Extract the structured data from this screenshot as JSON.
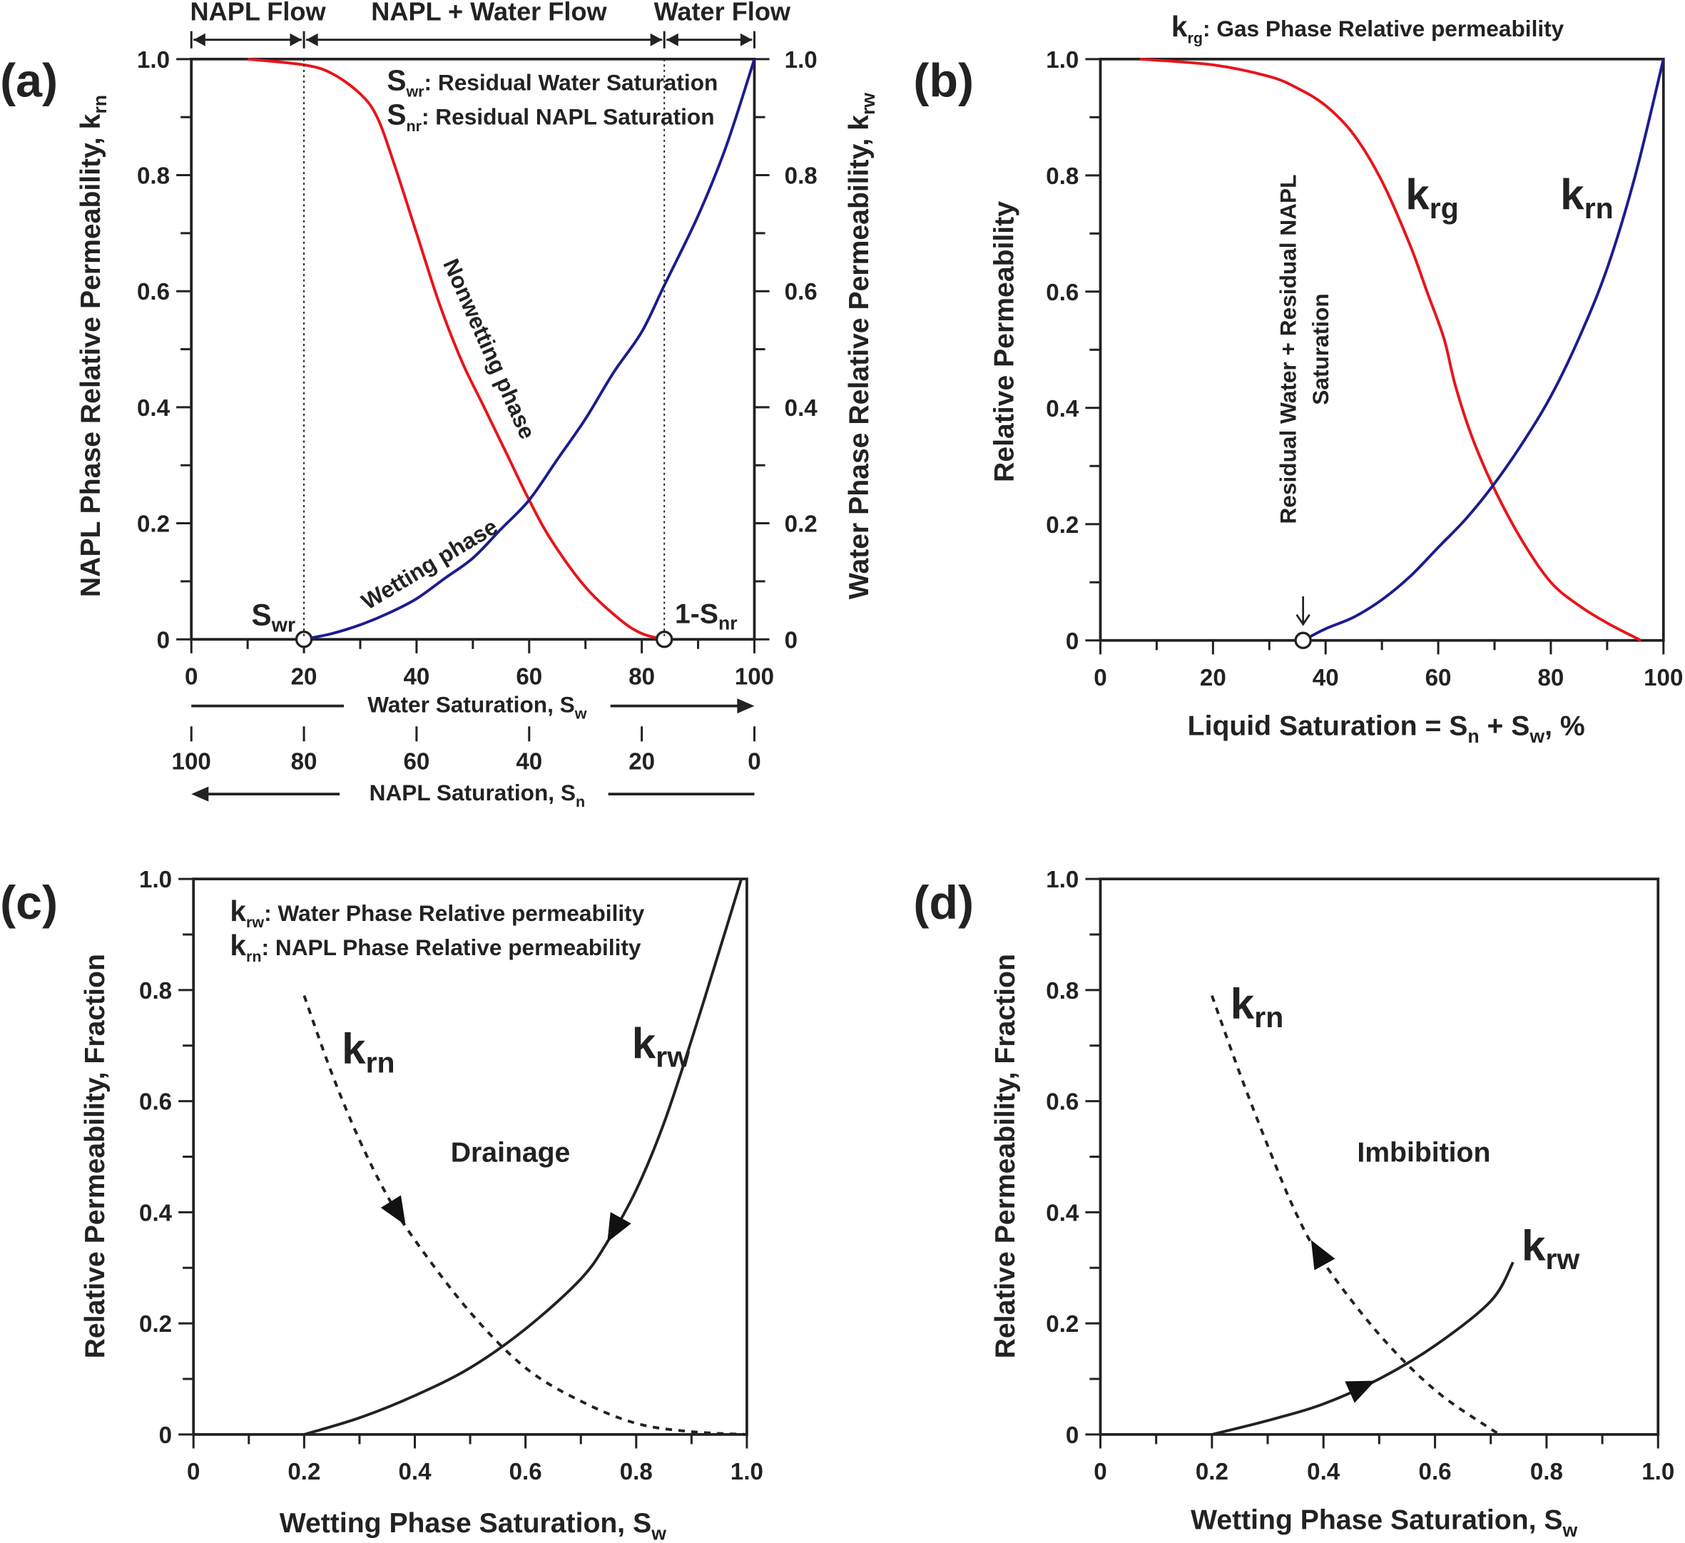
{
  "chart_data": [
    {
      "panel": "(a)",
      "type": "line",
      "xlim": [
        0,
        100
      ],
      "ylim": [
        0,
        1
      ],
      "x_ticks": [
        "0",
        "20",
        "40",
        "60",
        "80",
        "100"
      ],
      "y_ticks": [
        "0",
        "0.2",
        "0.4",
        "0.6",
        "0.8",
        "1.0"
      ],
      "y2_ticks": [
        "0",
        "0.2",
        "0.4",
        "0.6",
        "0.8",
        "1.0"
      ],
      "secondary_x_ticks": [
        "100",
        "80",
        "60",
        "40",
        "20",
        "0"
      ],
      "xlabel": {
        "text": "Water Saturation, S",
        "sub": "w"
      },
      "secondary_xlabel": {
        "text": "NAPL Saturation, S",
        "sub": "n"
      },
      "ylabel": {
        "text": "NAPL Phase Relative Permeability, k",
        "sub": "rn"
      },
      "y2label": {
        "text": "Water Phase Relative Permeability, k",
        "sub": "rw"
      },
      "flow_regions": [
        "NAPL Flow",
        "NAPL + Water Flow",
        "Water Flow"
      ],
      "legend": [
        {
          "symbol": "S",
          "sub": "wr",
          "text": ": Residual Water Saturation"
        },
        {
          "symbol": "S",
          "sub": "nr",
          "text": ": Residual NAPL Saturation"
        }
      ],
      "markers": [
        {
          "label": "S",
          "sub": "wr",
          "x": 20,
          "y": 0
        },
        {
          "label": "1-S",
          "sub": "nr",
          "x": 84,
          "y": 0
        }
      ],
      "series": [
        {
          "name": "Nonwetting phase",
          "color": "#e8141b",
          "style": "solid",
          "x": [
            10,
            20,
            25,
            30,
            33,
            36,
            40,
            44,
            48,
            52,
            56,
            60,
            64,
            70,
            76,
            80,
            84
          ],
          "y": [
            1.0,
            0.99,
            0.975,
            0.94,
            0.9,
            0.82,
            0.7,
            0.58,
            0.48,
            0.4,
            0.32,
            0.24,
            0.17,
            0.09,
            0.035,
            0.01,
            0
          ]
        },
        {
          "name": "Wetting phase",
          "color": "#1c1c8f",
          "style": "solid",
          "x": [
            20,
            25,
            30,
            35,
            40,
            45,
            50,
            55,
            60,
            65,
            70,
            75,
            80,
            84,
            90,
            95,
            100
          ],
          "y": [
            0,
            0.01,
            0.025,
            0.045,
            0.07,
            0.105,
            0.14,
            0.19,
            0.24,
            0.31,
            0.38,
            0.46,
            0.53,
            0.61,
            0.73,
            0.85,
            1.0
          ]
        }
      ]
    },
    {
      "panel": "(b)",
      "type": "line",
      "title": {
        "symbol": "k",
        "sub": "rg",
        "text": ": Gas Phase Relative permeability"
      },
      "xlim": [
        0,
        100
      ],
      "ylim": [
        0,
        1
      ],
      "x_ticks": [
        "0",
        "20",
        "40",
        "60",
        "80",
        "100"
      ],
      "y_ticks": [
        "0",
        "0.2",
        "0.4",
        "0.6",
        "0.8",
        "1.0"
      ],
      "xlabel": {
        "text": "Liquid Saturation = S",
        "sub": "n",
        "text2": " + S",
        "sub2": "w",
        "text3": ", %"
      },
      "ylabel": {
        "text": "Relative Permeability"
      },
      "annotation": [
        "Residual Water + Residual NAPL",
        "Saturation"
      ],
      "markers": [
        {
          "x": 36,
          "y": 0
        }
      ],
      "series": [
        {
          "name": "k",
          "sub": "rg",
          "color": "#e8141b",
          "style": "solid",
          "x": [
            7,
            20,
            30,
            35,
            40,
            45,
            50,
            55,
            58,
            61,
            63,
            66,
            70,
            75,
            80,
            85,
            90,
            96
          ],
          "y": [
            1.0,
            0.99,
            0.97,
            0.95,
            0.92,
            0.87,
            0.79,
            0.68,
            0.6,
            0.52,
            0.44,
            0.35,
            0.26,
            0.17,
            0.1,
            0.06,
            0.03,
            0
          ]
        },
        {
          "name": "k",
          "sub": "rn",
          "color": "#1c1c8f",
          "style": "solid",
          "x": [
            36,
            40,
            45,
            50,
            55,
            60,
            65,
            70,
            75,
            80,
            85,
            90,
            95,
            100
          ],
          "y": [
            0,
            0.02,
            0.04,
            0.07,
            0.11,
            0.16,
            0.21,
            0.27,
            0.34,
            0.42,
            0.52,
            0.64,
            0.8,
            1.0
          ]
        }
      ]
    },
    {
      "panel": "(c)",
      "type": "line",
      "xlim": [
        0,
        1
      ],
      "ylim": [
        0,
        1
      ],
      "x_ticks": [
        "0",
        "0.2",
        "0.4",
        "0.6",
        "0.8",
        "1.0"
      ],
      "y_ticks": [
        "0",
        "0.2",
        "0.4",
        "0.6",
        "0.8",
        "1.0"
      ],
      "xlabel": {
        "text": "Wetting Phase Saturation, S",
        "sub": "w"
      },
      "ylabel": {
        "text": "Relative Permeability, Fraction"
      },
      "legend": [
        {
          "symbol": "k",
          "sub": "rw",
          "text": ": Water Phase Relative permeability"
        },
        {
          "symbol": "k",
          "sub": "rn",
          "text": ": NAPL Phase Relative permeability"
        }
      ],
      "process": "Drainage",
      "series": [
        {
          "name": "k",
          "sub": "rn",
          "color": "#222222",
          "style": "dashed",
          "arrow_at": 0.37,
          "arrow_direction": "increasing",
          "x": [
            0.2,
            0.25,
            0.3,
            0.35,
            0.4,
            0.5,
            0.6,
            0.7,
            0.8,
            0.9,
            1.0
          ],
          "y": [
            0.79,
            0.65,
            0.53,
            0.43,
            0.35,
            0.22,
            0.12,
            0.06,
            0.02,
            0.005,
            0
          ]
        },
        {
          "name": "k",
          "sub": "rw",
          "color": "#222222",
          "style": "solid",
          "arrow_at": 0.76,
          "arrow_direction": "decreasing",
          "x": [
            0.2,
            0.3,
            0.4,
            0.5,
            0.6,
            0.7,
            0.75,
            0.8,
            0.85,
            0.9,
            0.95,
            0.99
          ],
          "y": [
            0,
            0.03,
            0.07,
            0.12,
            0.19,
            0.28,
            0.35,
            0.44,
            0.56,
            0.71,
            0.87,
            1.0
          ]
        }
      ]
    },
    {
      "panel": "(d)",
      "type": "line",
      "xlim": [
        0,
        1
      ],
      "ylim": [
        0,
        1
      ],
      "x_ticks": [
        "0",
        "0.2",
        "0.4",
        "0.6",
        "0.8",
        "1.0"
      ],
      "y_ticks": [
        "0",
        "0.2",
        "0.4",
        "0.6",
        "0.8",
        "1.0"
      ],
      "xlabel": {
        "text": "Wetting Phase Saturation, S",
        "sub": "w"
      },
      "ylabel": {
        "text": "Relative Permeability, Fraction"
      },
      "process": "Imbibition",
      "series": [
        {
          "name": "k",
          "sub": "rn",
          "color": "#222222",
          "style": "dashed",
          "arrow_at": 0.39,
          "arrow_direction": "decreasing",
          "x": [
            0.2,
            0.25,
            0.3,
            0.35,
            0.4,
            0.5,
            0.6,
            0.7,
            0.72
          ],
          "y": [
            0.79,
            0.65,
            0.52,
            0.4,
            0.31,
            0.18,
            0.08,
            0.01,
            0
          ]
        },
        {
          "name": "k",
          "sub": "rw",
          "color": "#222222",
          "style": "solid",
          "arrow_at": 0.47,
          "arrow_direction": "increasing",
          "x": [
            0.2,
            0.3,
            0.4,
            0.5,
            0.6,
            0.7,
            0.74
          ],
          "y": [
            0,
            0.025,
            0.055,
            0.1,
            0.16,
            0.24,
            0.31
          ]
        }
      ]
    }
  ]
}
